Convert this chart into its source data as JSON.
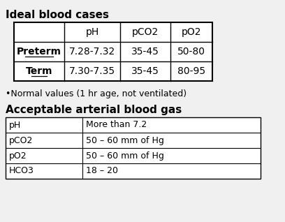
{
  "title1": "Ideal blood cases",
  "title2": "Acceptable arterial blood gas",
  "note": "•Normal values (1 hr age, not ventilated)",
  "table1_headers": [
    "",
    "pH",
    "pCO2",
    "pO2"
  ],
  "table1_rows": [
    [
      "Preterm",
      "7.28-7.32",
      "35-45",
      "50-80"
    ],
    [
      "Term",
      "7.30-7.35",
      "35-45",
      "80-95"
    ]
  ],
  "table2_rows": [
    [
      "pH",
      "More than 7.2"
    ],
    [
      "pCO2",
      "50 – 60 mm of Hg"
    ],
    [
      "pO2",
      "50 – 60 mm of Hg"
    ],
    [
      "HCO3",
      "18 – 20"
    ]
  ],
  "bg_color": "#f0f0f0",
  "table_bg": "#ffffff",
  "font_size": 9,
  "title_font_size": 11
}
